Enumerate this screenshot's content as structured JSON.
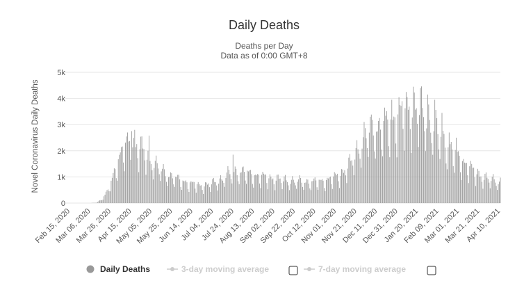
{
  "chart_data": {
    "type": "bar",
    "title": "Daily Deaths",
    "subtitle": "Deaths per Day",
    "subtitle2": "Data as of 0:00 GMT+8",
    "ylabel": "Novel Coronavirus Daily Deaths",
    "xlabel": "",
    "ylim": [
      0,
      5000
    ],
    "yticks": [
      {
        "value": 0,
        "label": "0"
      },
      {
        "value": 1000,
        "label": "1k"
      },
      {
        "value": 2000,
        "label": "2k"
      },
      {
        "value": 3000,
        "label": "3k"
      },
      {
        "value": 4000,
        "label": "4k"
      },
      {
        "value": 5000,
        "label": "5k"
      }
    ],
    "start_date": "2020-02-15",
    "days": 423,
    "xticks": [
      {
        "day": 0,
        "label": "Feb 15, 2020"
      },
      {
        "day": 20,
        "label": "Mar 06, 2020"
      },
      {
        "day": 40,
        "label": "Mar 26, 2020"
      },
      {
        "day": 60,
        "label": "Apr 15, 2020"
      },
      {
        "day": 80,
        "label": "May 05, 2020"
      },
      {
        "day": 100,
        "label": "May 25, 2020"
      },
      {
        "day": 120,
        "label": "Jun 14, 2020"
      },
      {
        "day": 140,
        "label": "Jul 04, 2020"
      },
      {
        "day": 160,
        "label": "Jul 24, 2020"
      },
      {
        "day": 180,
        "label": "Aug 13, 2020"
      },
      {
        "day": 200,
        "label": "Sep 02, 2020"
      },
      {
        "day": 220,
        "label": "Sep 22, 2020"
      },
      {
        "day": 240,
        "label": "Oct 12, 2020"
      },
      {
        "day": 260,
        "label": "Nov 01, 2020"
      },
      {
        "day": 280,
        "label": "Nov 21, 2020"
      },
      {
        "day": 300,
        "label": "Dec 11, 2020"
      },
      {
        "day": 320,
        "label": "Dec 31, 2020"
      },
      {
        "day": 340,
        "label": "Jan 20, 2021"
      },
      {
        "day": 360,
        "label": "Feb 09, 2021"
      },
      {
        "day": 380,
        "label": "Mar 01, 2021"
      },
      {
        "day": 400,
        "label": "Mar 21, 2021"
      },
      {
        "day": 420,
        "label": "Apr 10, 2021"
      }
    ],
    "trend_points": [
      [
        0,
        0
      ],
      [
        22,
        0
      ],
      [
        28,
        20
      ],
      [
        33,
        150
      ],
      [
        38,
        400
      ],
      [
        42,
        800
      ],
      [
        46,
        1300
      ],
      [
        50,
        1700
      ],
      [
        54,
        2000
      ],
      [
        58,
        2150
      ],
      [
        62,
        2200
      ],
      [
        66,
        2150
      ],
      [
        70,
        2050
      ],
      [
        75,
        1900
      ],
      [
        80,
        1650
      ],
      [
        86,
        1400
      ],
      [
        92,
        1200
      ],
      [
        100,
        1000
      ],
      [
        110,
        850
      ],
      [
        120,
        720
      ],
      [
        130,
        650
      ],
      [
        140,
        720
      ],
      [
        150,
        900
      ],
      [
        158,
        1120
      ],
      [
        165,
        1180
      ],
      [
        172,
        1150
      ],
      [
        180,
        1050
      ],
      [
        190,
        980
      ],
      [
        200,
        920
      ],
      [
        210,
        860
      ],
      [
        220,
        830
      ],
      [
        230,
        800
      ],
      [
        240,
        790
      ],
      [
        250,
        830
      ],
      [
        260,
        950
      ],
      [
        268,
        1150
      ],
      [
        276,
        1500
      ],
      [
        284,
        2100
      ],
      [
        290,
        2500
      ],
      [
        296,
        2700
      ],
      [
        302,
        2800
      ],
      [
        310,
        2850
      ],
      [
        318,
        3100
      ],
      [
        326,
        3400
      ],
      [
        332,
        3550
      ],
      [
        337,
        3620
      ],
      [
        342,
        3500
      ],
      [
        348,
        3300
      ],
      [
        354,
        3000
      ],
      [
        360,
        2700
      ],
      [
        366,
        2350
      ],
      [
        372,
        2050
      ],
      [
        378,
        1800
      ],
      [
        384,
        1600
      ],
      [
        390,
        1400
      ],
      [
        396,
        1200
      ],
      [
        402,
        1050
      ],
      [
        410,
        900
      ],
      [
        416,
        850
      ],
      [
        422,
        800
      ]
    ],
    "daily_peaks": [
      {
        "day": 58,
        "value": 2700
      },
      {
        "day": 62,
        "value": 2750
      },
      {
        "day": 65,
        "value": 2800
      },
      {
        "day": 72,
        "value": 2550
      },
      {
        "day": 79,
        "value": 2580
      },
      {
        "day": 161,
        "value": 1850
      },
      {
        "day": 295,
        "value": 3300
      },
      {
        "day": 309,
        "value": 3650
      },
      {
        "day": 316,
        "value": 3950
      },
      {
        "day": 323,
        "value": 4050
      },
      {
        "day": 330,
        "value": 4250
      },
      {
        "day": 337,
        "value": 4450
      },
      {
        "day": 344,
        "value": 4400
      },
      {
        "day": 351,
        "value": 4150
      },
      {
        "day": 358,
        "value": 3950
      },
      {
        "day": 365,
        "value": 3450
      },
      {
        "day": 372,
        "value": 2700
      },
      {
        "day": 379,
        "value": 2500
      }
    ],
    "weekly_pattern": [
      1.0,
      1.12,
      1.18,
      1.1,
      1.02,
      0.78,
      0.6
    ],
    "legend": [
      {
        "name": "Daily Deaths",
        "enabled": true
      },
      {
        "name": "3-day moving average",
        "enabled": false
      },
      {
        "name": "7-day moving average",
        "enabled": false
      }
    ],
    "colors": {
      "bars": "#9a9a9a",
      "grid": "#e6e6e6",
      "legend_active": "#333333",
      "legend_inactive": "#cccccc",
      "legend_marker_active": "#999999",
      "legend_marker_inactive": "#cccccc"
    }
  }
}
